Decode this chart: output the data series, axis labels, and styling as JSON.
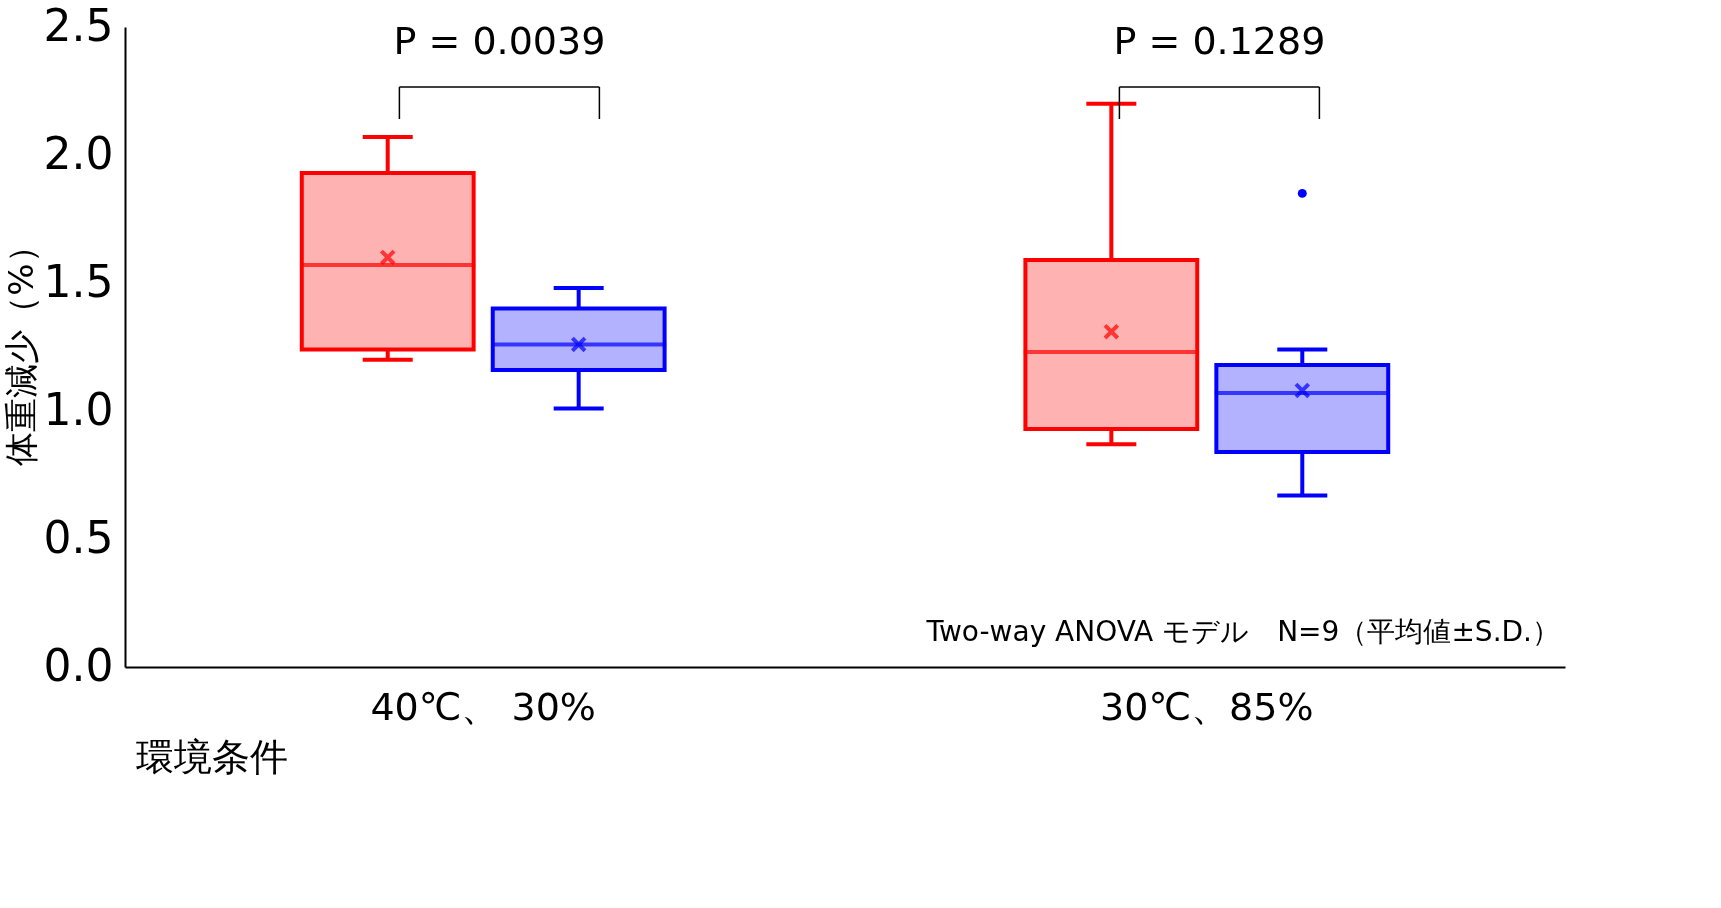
{
  "chart_data": {
    "type": "box",
    "xlabel": "環境条件",
    "ylabel": "体重減少（%）",
    "categories": [
      "40℃、 30%",
      "30℃、85%"
    ],
    "ylim": [
      0,
      2.5
    ],
    "yticks": [
      {
        "value": 0,
        "label": "0.0"
      },
      {
        "value": 0.5,
        "label": "0.5"
      },
      {
        "value": 1,
        "label": "1.0"
      },
      {
        "value": 1.5,
        "label": "1.5"
      },
      {
        "value": 2,
        "label": "2.0"
      },
      {
        "value": 2.5,
        "label": "2.5"
      }
    ],
    "grid": false,
    "legend": false,
    "series": [
      {
        "color": "#ff0000",
        "boxes": [
          {
            "low": 1.2,
            "q1": 1.24,
            "median": 1.57,
            "q3": 1.93,
            "high": 2.07,
            "mean": 1.6
          },
          {
            "low": 0.87,
            "q1": 0.93,
            "median": 1.23,
            "q3": 1.59,
            "high": 2.2,
            "mean": 1.31
          }
        ]
      },
      {
        "color": "#0000ff",
        "boxes": [
          {
            "low": 1.01,
            "q1": 1.16,
            "median": 1.26,
            "q3": 1.4,
            "high": 1.48,
            "mean": 1.26
          },
          {
            "low": 0.67,
            "q1": 0.84,
            "median": 1.07,
            "q3": 1.18,
            "high": 1.24,
            "mean": 1.08,
            "outliers": [
              1.85
            ]
          }
        ]
      }
    ],
    "annotations": [
      "P = 0.0039",
      "P = 0.1289",
      "Two-way ANOVA モデル　N=9（平均値±S.D.）"
    ]
  }
}
